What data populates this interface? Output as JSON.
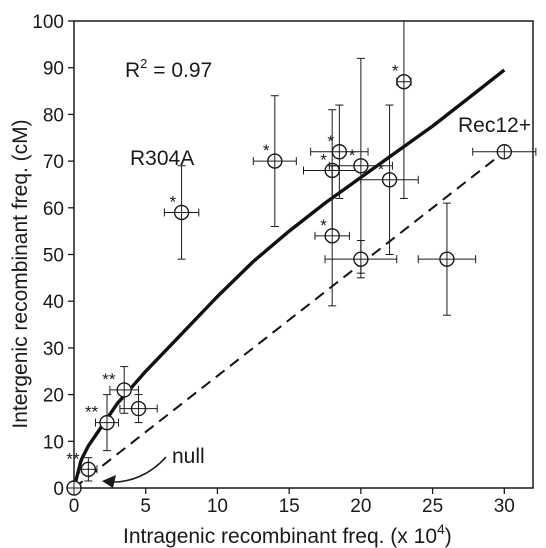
{
  "chart_data": {
    "type": "scatter",
    "xlabel": "Intragenic recombinant freq. (x 10",
    "xlabel_sup": "4",
    "xlabel_end": ")",
    "ylabel": "Intergenic recombinant freq. (cM)",
    "xlim": [
      0,
      32
    ],
    "ylim": [
      0,
      100
    ],
    "xticks": [
      0,
      5,
      10,
      15,
      20,
      25,
      30
    ],
    "yticks": [
      0,
      10,
      20,
      30,
      40,
      50,
      60,
      70,
      80,
      90,
      100
    ],
    "r2_prefix": "R",
    "r2_sup": "2",
    "r2_suffix": " = 0.97",
    "points": [
      {
        "x": 0,
        "y": 0,
        "xerr": 0,
        "yerr_low": 0,
        "yerr_high": 0,
        "label": ""
      },
      {
        "x": 1,
        "y": 4,
        "xerr": 0.6,
        "yerr_low": 2.5,
        "yerr_high": 2.5,
        "label": "**"
      },
      {
        "x": 2.3,
        "y": 14,
        "xerr": 0.8,
        "yerr_low": 6,
        "yerr_high": 6,
        "label": "**"
      },
      {
        "x": 3.5,
        "y": 21,
        "xerr": 1.0,
        "yerr_low": 5,
        "yerr_high": 5,
        "label": "**"
      },
      {
        "x": 4.5,
        "y": 17,
        "xerr": 1.3,
        "yerr_low": 3,
        "yerr_high": 3,
        "label": ""
      },
      {
        "x": 7.5,
        "y": 59,
        "xerr": 1.2,
        "yerr_low": 10,
        "yerr_high": 10,
        "label": "*"
      },
      {
        "x": 14,
        "y": 70,
        "xerr": 1.5,
        "yerr_low": 14,
        "yerr_high": 14,
        "label": "*"
      },
      {
        "x": 18,
        "y": 68,
        "xerr": 2.0,
        "yerr_low": 13,
        "yerr_high": 13,
        "label": "*"
      },
      {
        "x": 18,
        "y": 54,
        "xerr": 1.2,
        "yerr_low": 15,
        "yerr_high": 15,
        "label": "*"
      },
      {
        "x": 18.5,
        "y": 72,
        "xerr": 2.0,
        "yerr_low": 10,
        "yerr_high": 10,
        "label": "*"
      },
      {
        "x": 20,
        "y": 69,
        "xerr": 2.2,
        "yerr_low": 23,
        "yerr_high": 23,
        "label": "*"
      },
      {
        "x": 20,
        "y": 49,
        "xerr": 2.5,
        "yerr_low": 4,
        "yerr_high": 4,
        "label": ""
      },
      {
        "x": 22,
        "y": 66,
        "xerr": 2.0,
        "yerr_low": 16,
        "yerr_high": 16,
        "label": "*"
      },
      {
        "x": 23,
        "y": 87,
        "xerr": 0.5,
        "yerr_low": 25,
        "yerr_high": 25,
        "label": "*"
      },
      {
        "x": 26,
        "y": 49,
        "xerr": 2.0,
        "yerr_low": 12,
        "yerr_high": 12,
        "label": ""
      },
      {
        "x": 30,
        "y": 72,
        "xerr": 2.2,
        "yerr_low": 0,
        "yerr_high": 0,
        "label": ""
      }
    ],
    "solid_fit": [
      [
        0,
        0
      ],
      [
        0.5,
        6
      ],
      [
        1,
        9
      ],
      [
        2,
        13.5
      ],
      [
        3,
        18
      ],
      [
        5,
        25
      ],
      [
        7.5,
        33
      ],
      [
        10,
        41
      ],
      [
        12.5,
        48.5
      ],
      [
        15,
        55
      ],
      [
        17.5,
        61
      ],
      [
        20,
        66.5
      ],
      [
        22.5,
        72
      ],
      [
        25,
        77.5
      ],
      [
        27.5,
        83.5
      ],
      [
        30,
        89.5
      ]
    ],
    "dashed_fit": [
      [
        0,
        0
      ],
      [
        30,
        72
      ]
    ],
    "annotations": {
      "rec12": "Rec12+",
      "r304a": "R304A",
      "null": "null"
    },
    "grid": false
  }
}
